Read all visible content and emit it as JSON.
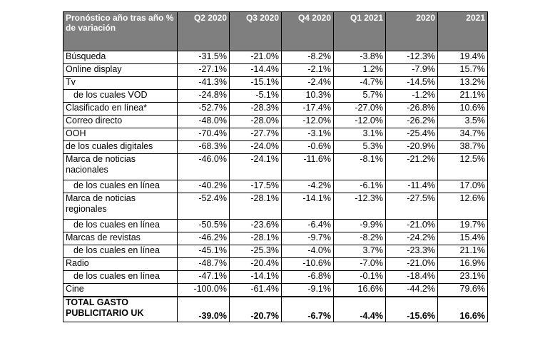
{
  "header": {
    "label": "Pronóstico año tras año % de variación",
    "columns": [
      "Q2 2020",
      "Q3 2020",
      "Q4 2020",
      "Q1 2021",
      "2020",
      "2021"
    ]
  },
  "rows": [
    {
      "label": "Búsqueda",
      "values": [
        "-31.5%",
        "-21.0%",
        "-8.2%",
        "-3.8%",
        "-12.3%",
        "19.4%"
      ]
    },
    {
      "label": "Online display",
      "values": [
        "-27.1%",
        "-14.4%",
        "-2.1%",
        "1.2%",
        "-7.9%",
        "15.7%"
      ]
    },
    {
      "label": "Tv",
      "values": [
        "-41.3%",
        "-15.1%",
        "-2.4%",
        "-4.7%",
        "-14.5%",
        "13.2%"
      ]
    },
    {
      "label": "de los cuales VOD",
      "values": [
        "-24.8%",
        "-5.1%",
        "10.3%",
        "5.7%",
        "-1.2%",
        "21.1%"
      ]
    },
    {
      "label": "Clasificado en línea*",
      "values": [
        "-52.7%",
        "-28.3%",
        "-17.4%",
        "-27.0%",
        "-26.8%",
        "10.6%"
      ]
    },
    {
      "label": "Correo directo",
      "values": [
        "-48.0%",
        "-28.0%",
        "-12.0%",
        "-12.0%",
        "-26.2%",
        "3.5%"
      ]
    },
    {
      "label": "OOH",
      "values": [
        "-70.4%",
        "-27.7%",
        "-3.1%",
        "3.1%",
        "-25.4%",
        "34.7%"
      ]
    },
    {
      "label": "de los cuales digitales",
      "values": [
        "-68.3%",
        "-24.0%",
        "-0.6%",
        "5.3%",
        "-20.9%",
        "38.7%"
      ]
    },
    {
      "label": "Marca de noticias nacionales",
      "values": [
        "-46.0%",
        "-24.1%",
        "-11.6%",
        "-8.1%",
        "-21.2%",
        "12.5%"
      ]
    },
    {
      "label": "de los cuales en línea",
      "values": [
        "-40.2%",
        "-17.5%",
        "-4.2%",
        "-6.1%",
        "-11.4%",
        "17.0%"
      ]
    },
    {
      "label": "Marca de noticias regionales",
      "values": [
        "-52.4%",
        "-28.1%",
        "-14.1%",
        "-12.3%",
        "-27.5%",
        "12.6%"
      ]
    },
    {
      "label": "de los cuales en línea",
      "values": [
        "-50.5%",
        "-23.6%",
        "-6.4%",
        "-9.9%",
        "-21.0%",
        "19.7%"
      ]
    },
    {
      "label": "Marcas de revistas",
      "values": [
        "-46.2%",
        "-28.1%",
        "-9.7%",
        "-8.2%",
        "-24.2%",
        "15.4%"
      ]
    },
    {
      "label": "de los cuales en línea",
      "values": [
        "-45.1%",
        "-25.3%",
        "-4.0%",
        "3.7%",
        "-23.3%",
        "21.1%"
      ]
    },
    {
      "label": "Radio",
      "values": [
        "-48.7%",
        "-20.4%",
        "-10.6%",
        "-7.0%",
        "-21.0%",
        "16.9%"
      ]
    },
    {
      "label": "de los cuales en línea",
      "values": [
        "-47.1%",
        "-14.1%",
        "-6.8%",
        "-0.1%",
        "-18.4%",
        "23.1%"
      ]
    },
    {
      "label": "Cine",
      "values": [
        "-100.0%",
        "-61.4%",
        "-9.1%",
        "16.6%",
        "-44.2%",
        "79.6%"
      ]
    }
  ],
  "total": {
    "label": "TOTAL GASTO PUBLICITARIO UK",
    "values": [
      "-39.0%",
      "-20.7%",
      "-6.7%",
      "-4.4%",
      "-15.6%",
      "16.6%"
    ]
  }
}
